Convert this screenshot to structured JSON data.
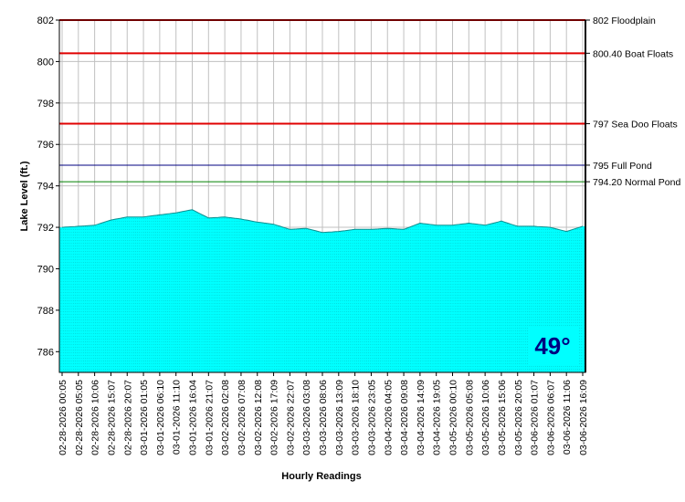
{
  "chart_data": {
    "type": "area",
    "xlabel": "Hourly Readings",
    "ylabel": "Lake Level (ft.)",
    "ylim": [
      785,
      802
    ],
    "yticks": [
      786,
      788,
      790,
      792,
      794,
      796,
      798,
      800,
      802
    ],
    "grid": true,
    "fill_color": "#00ffff",
    "x": [
      "02-28-2026 00:05",
      "02-28-2026 05:05",
      "02-28-2026 10:06",
      "02-28-2026 15:07",
      "02-28-2026 20:07",
      "03-01-2026 01:05",
      "03-01-2026 06:10",
      "03-01-2026 11:10",
      "03-01-2026 16:04",
      "03-01-2026 21:07",
      "03-02-2026 02:08",
      "03-02-2026 07:08",
      "03-02-2026 12:08",
      "03-02-2026 17:09",
      "03-02-2026 22:07",
      "03-03-2026 03:08",
      "03-03-2026 08:06",
      "03-03-2026 13:09",
      "03-03-2026 18:10",
      "03-03-2026 23:05",
      "03-04-2026 04:05",
      "03-04-2026 09:08",
      "03-04-2026 14:09",
      "03-04-2026 19:05",
      "03-05-2026 00:10",
      "03-05-2026 05:08",
      "03-05-2026 10:06",
      "03-05-2026 15:06",
      "03-05-2026 20:05",
      "03-06-2026 01:07",
      "03-06-2026 06:07",
      "03-06-2026 11:06",
      "03-06-2026 16:09"
    ],
    "values": [
      792.0,
      792.05,
      792.1,
      792.35,
      792.5,
      792.5,
      792.6,
      792.7,
      792.85,
      792.45,
      792.5,
      792.4,
      792.25,
      792.15,
      791.9,
      791.95,
      791.75,
      791.8,
      791.9,
      791.9,
      791.95,
      791.9,
      792.2,
      792.1,
      792.1,
      792.2,
      792.1,
      792.3,
      792.05,
      792.05,
      792.0,
      791.8,
      792.05
    ],
    "reference_lines": [
      {
        "value": 802,
        "label": "802 Floodplain",
        "color": "#e00000"
      },
      {
        "value": 800.4,
        "label": "800.40 Boat Floats",
        "color": "#e00000"
      },
      {
        "value": 797,
        "label": "797 Sea Doo Floats",
        "color": "#e00000"
      },
      {
        "value": 795,
        "label": "795 Full Pond",
        "color": "#000080"
      },
      {
        "value": 794.2,
        "label": "794.20 Normal Pond",
        "color": "#008000"
      }
    ]
  },
  "badge": {
    "text": "49°",
    "background": "#00ffff",
    "color": "#000080"
  }
}
